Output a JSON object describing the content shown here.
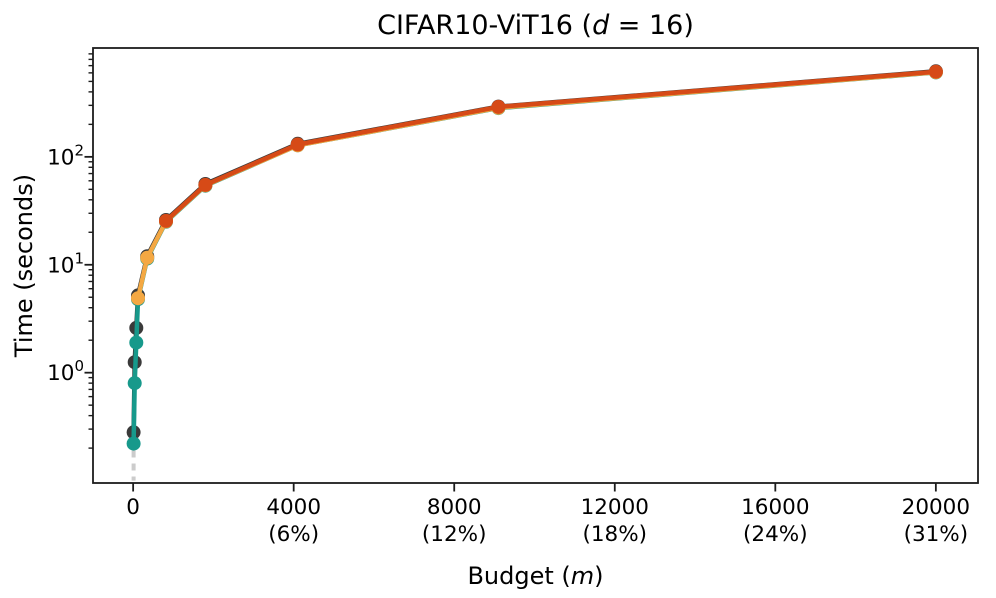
{
  "title": {
    "text": "CIFAR10-ViT16 (d = 16)",
    "parts": [
      {
        "text": "CIFAR10-ViT16 (",
        "italic": false
      },
      {
        "text": "d",
        "italic": true
      },
      {
        "text": " = 16)",
        "italic": false
      }
    ]
  },
  "axes": {
    "ylabel": "Time (seconds)",
    "xlabel": "Budget (m)",
    "xlabel_parts": [
      {
        "text": "Budget (",
        "italic": false
      },
      {
        "text": "m",
        "italic": true
      },
      {
        "text": ")",
        "italic": false
      }
    ],
    "x_ticks": [
      {
        "value": 0,
        "line1": "0",
        "line2": ""
      },
      {
        "value": 4000,
        "line1": "4000",
        "line2": "(6%)"
      },
      {
        "value": 8000,
        "line1": "8000",
        "line2": "(12%)"
      },
      {
        "value": 12000,
        "line1": "12000",
        "line2": "(18%)"
      },
      {
        "value": 16000,
        "line1": "16000",
        "line2": "(24%)"
      },
      {
        "value": 20000,
        "line1": "20000",
        "line2": "(31%)"
      }
    ],
    "y_ticks": [
      {
        "value": 1,
        "base": "10",
        "exp": "0"
      },
      {
        "value": 10,
        "base": "10",
        "exp": "1"
      },
      {
        "value": 100,
        "base": "10",
        "exp": "2"
      }
    ]
  },
  "chart_data": {
    "type": "line",
    "title": "CIFAR10-ViT16 (d = 16)",
    "xlabel": "Budget (m)",
    "ylabel": "Time (seconds)",
    "x_scale": "linear",
    "y_scale": "log",
    "xlim": [
      -1000,
      21050
    ],
    "ylim": [
      0.095,
      1020
    ],
    "grid": false,
    "legend": "none",
    "colors": {
      "dark": "#3a3a3a",
      "teal": "#17998b",
      "yellow": "#f4a843",
      "red": "#d64a17",
      "gray_dashed": "#c6c6c6",
      "axis": "#1c1c1c"
    },
    "series": [
      {
        "name": "gray-dashed",
        "color": "#c6c6c6",
        "marker": "none",
        "dashed": true,
        "line_width": 4,
        "x": [
          12,
          12
        ],
        "y": [
          0.19,
          0.1
        ]
      },
      {
        "name": "dark",
        "color": "#3a3a3a",
        "marker": "circle",
        "dashed": false,
        "line_width": 4.5,
        "x": [
          12,
          40,
          80,
          120,
          350,
          820,
          1800,
          4100,
          9100,
          20000
        ],
        "y": [
          0.28,
          1.25,
          2.6,
          5.2,
          12.0,
          26,
          56,
          132,
          292,
          620
        ]
      },
      {
        "name": "teal",
        "color": "#17998b",
        "marker": "circle",
        "dashed": false,
        "line_width": 4.5,
        "x": [
          12,
          40,
          80,
          120,
          350,
          820,
          1800,
          4100,
          9100,
          20000
        ],
        "y": [
          0.22,
          0.8,
          1.9,
          4.8,
          11.4,
          25,
          54,
          128,
          283,
          606
        ]
      },
      {
        "name": "yellow",
        "color": "#f4a843",
        "marker": "circle",
        "dashed": false,
        "line_width": 4.5,
        "x": [
          120,
          350,
          820,
          1800,
          4100,
          9100,
          20000
        ],
        "y": [
          4.9,
          11.6,
          25.2,
          54.5,
          128,
          285,
          608
        ]
      },
      {
        "name": "red",
        "color": "#d64a17",
        "marker": "circle",
        "dashed": false,
        "line_width": 4.5,
        "x": [
          820,
          1800,
          4100,
          9100,
          20000
        ],
        "y": [
          25.5,
          55,
          130,
          290,
          615
        ]
      }
    ]
  }
}
